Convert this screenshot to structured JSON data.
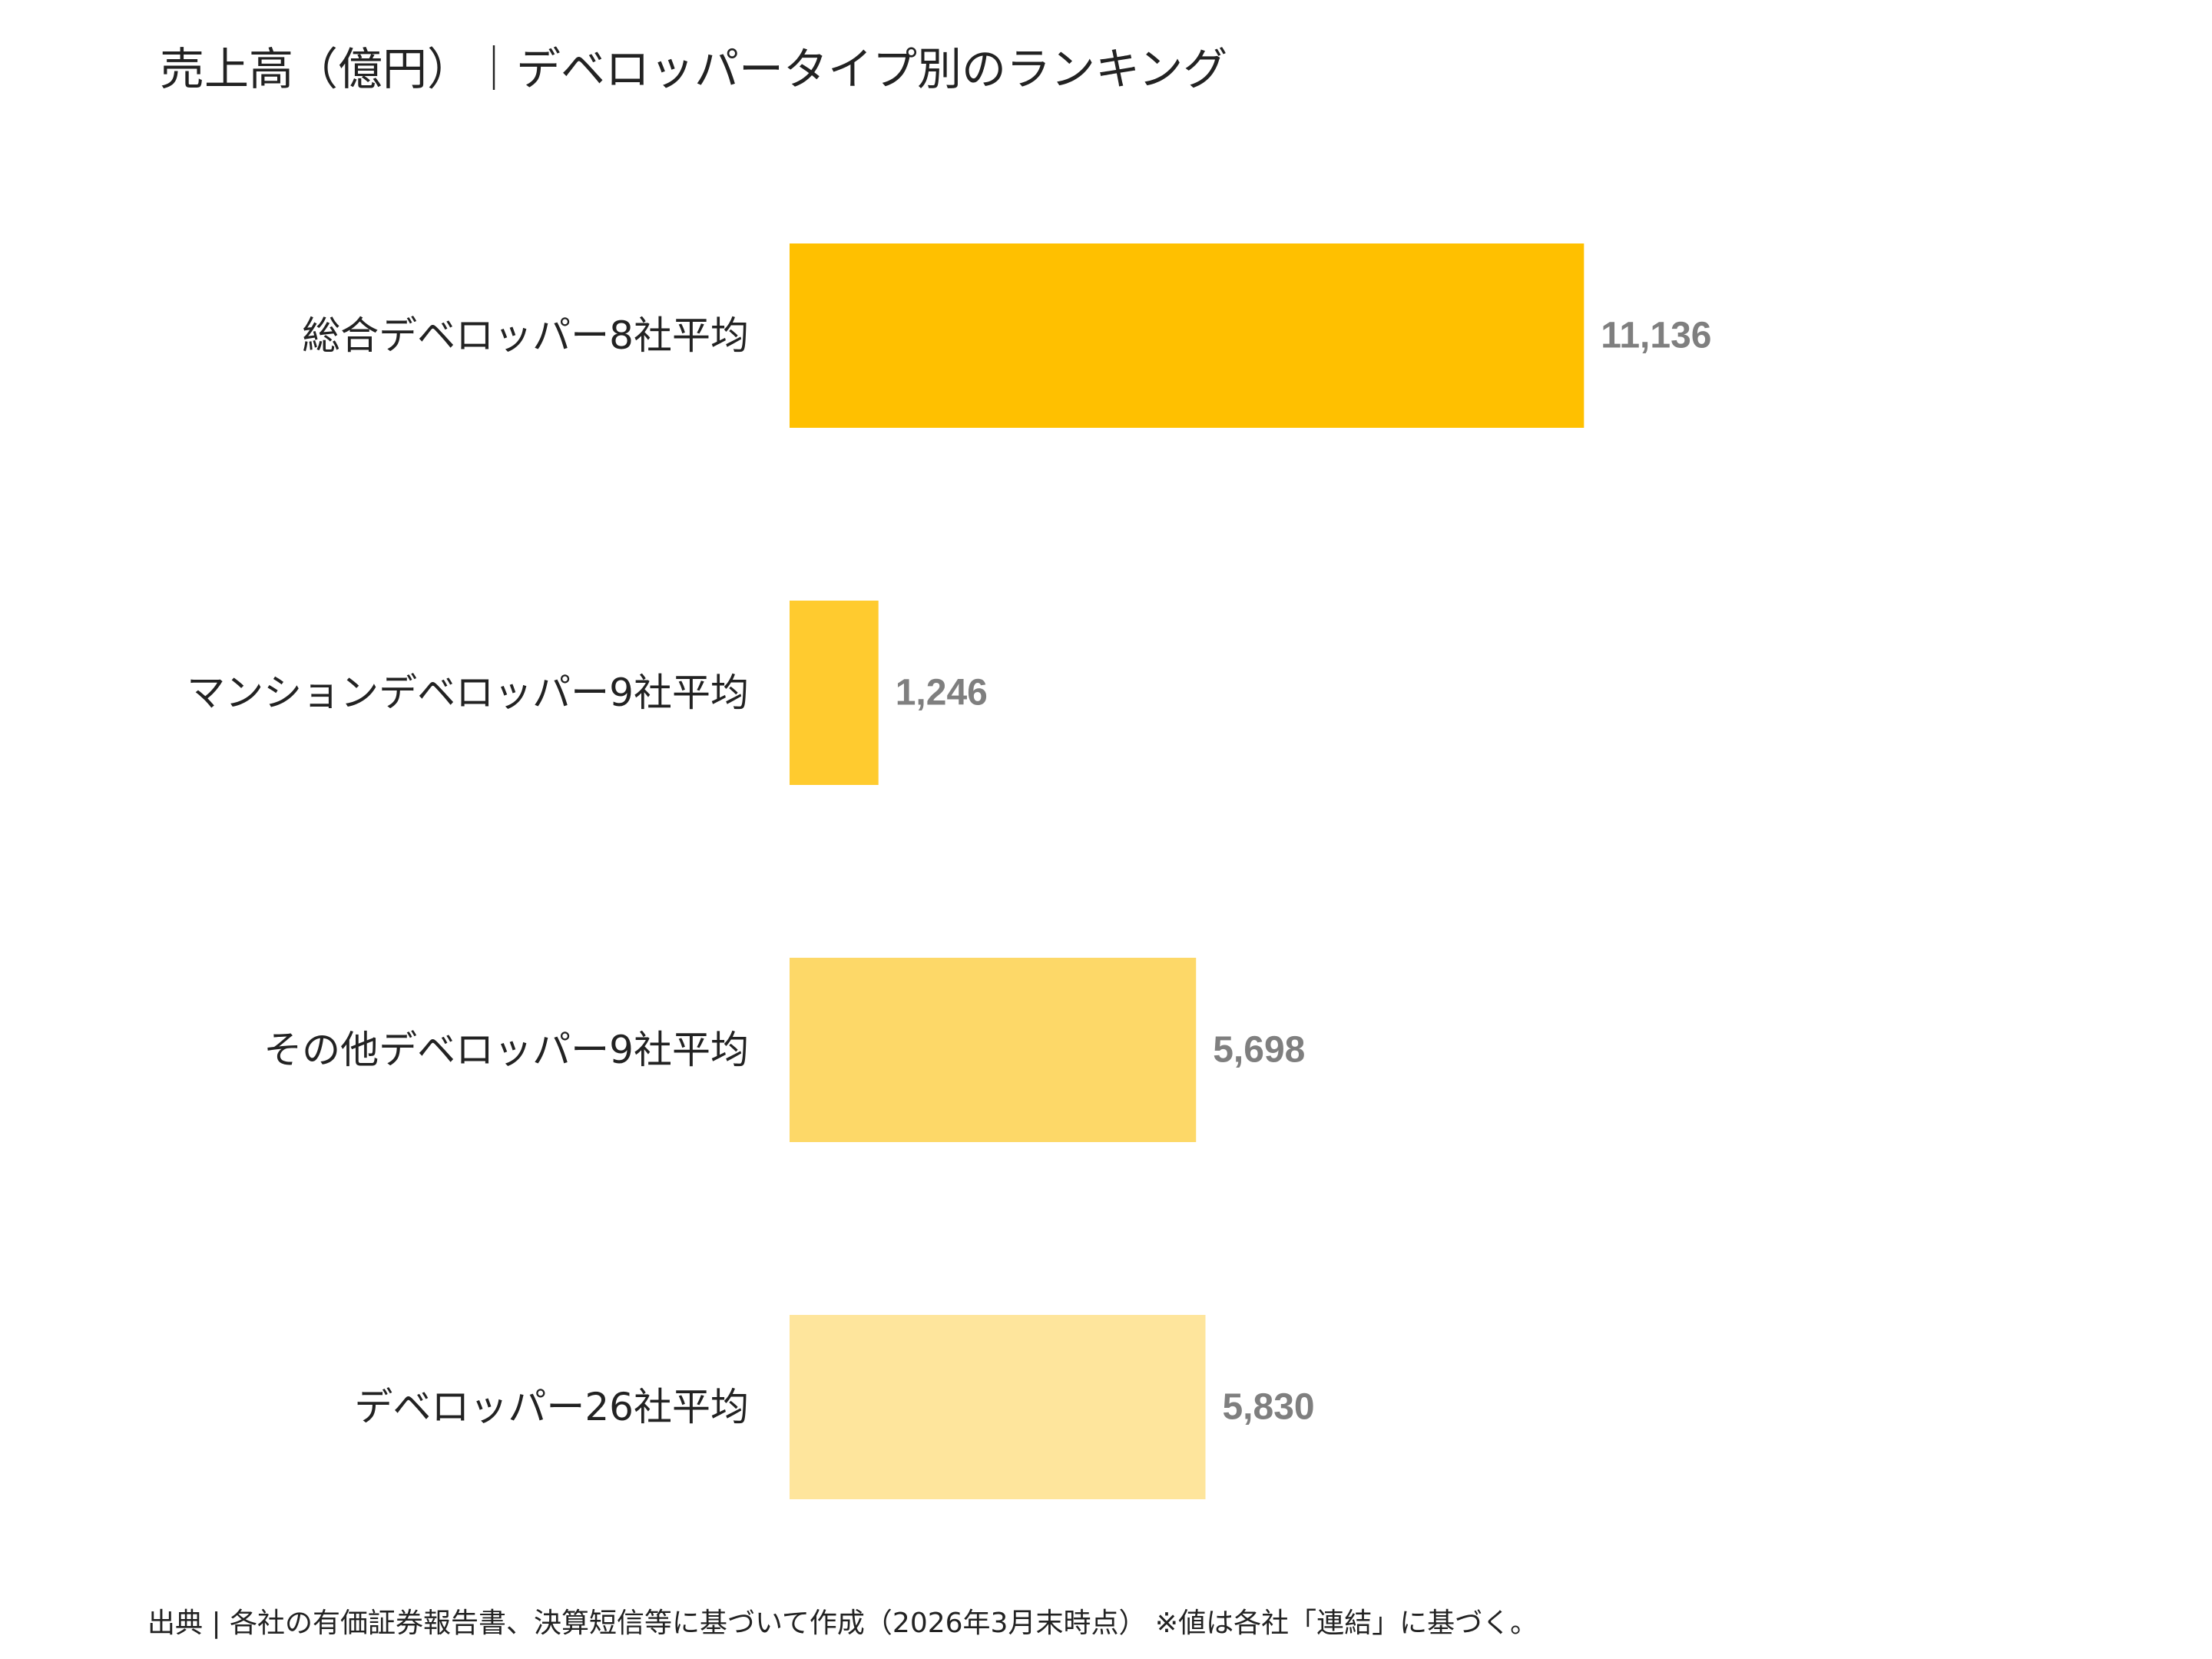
{
  "chart_data": {
    "type": "bar",
    "orientation": "horizontal",
    "title": "売上高（億円）｜デベロッパータイプ別のランキング",
    "categories": [
      "総合デベロッパー8社平均",
      "マンションデベロッパー9社平均",
      "その他デベロッパー9社平均",
      "デベロッパー26社平均"
    ],
    "values": [
      11136,
      1246,
      5698,
      5830
    ],
    "data_labels": [
      "11,136",
      "1,246",
      "5,698",
      "5,830"
    ],
    "bar_colors": [
      "#FFC000",
      "#FFCB2F",
      "#FDD868",
      "#FEE59C"
    ],
    "label_color": "#7F7F7F",
    "xlim": [
      0,
      25000
    ],
    "grid": false,
    "legend": "none"
  },
  "footnote": "出典 | 各社の有価証券報告書、決算短信等に基づいて作成（2026年3月末時点） ※値は各社「連結」に基づく。"
}
